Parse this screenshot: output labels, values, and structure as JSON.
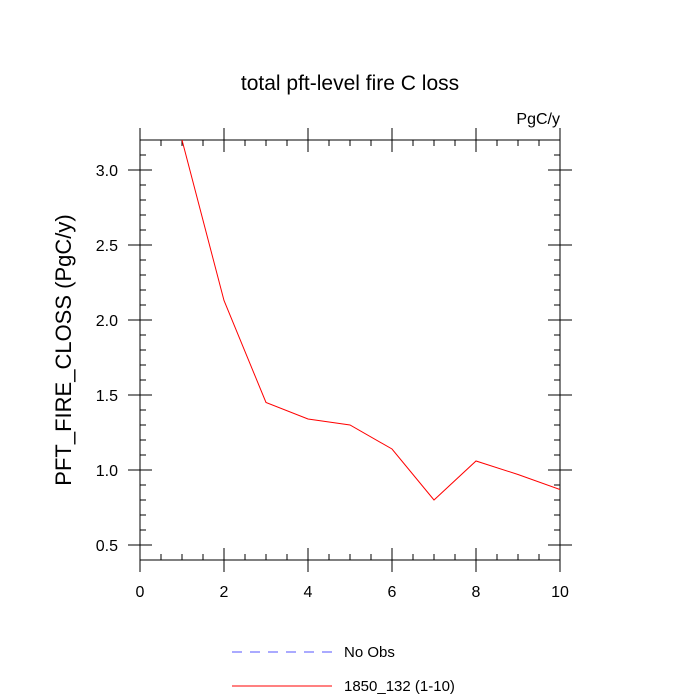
{
  "chart_data": {
    "type": "line",
    "title": "total pft-level fire C loss",
    "units_label": "PgC/y",
    "ylabel": "PFT_FIRE_CLOSS  (PgC/y)",
    "xlabel": "",
    "xlim": [
      0,
      10
    ],
    "ylim": [
      0.4,
      3.2
    ],
    "xticks": [
      0,
      2,
      4,
      6,
      8,
      10
    ],
    "yticks": [
      0.5,
      1.0,
      1.5,
      2.0,
      2.5,
      3.0
    ],
    "ytick_labels": [
      "0.5",
      "1.0",
      "1.5",
      "2.0",
      "2.5",
      "3.0"
    ],
    "grid": false,
    "series": [
      {
        "name": "No Obs",
        "color": "#5555ff",
        "style": "dashed",
        "x": [],
        "y": []
      },
      {
        "name": "1850_132 (1-10)",
        "color": "#ff0000",
        "style": "solid",
        "x": [
          1,
          2,
          3,
          4,
          5,
          6,
          7,
          8,
          9,
          10
        ],
        "y": [
          3.2,
          2.13,
          1.45,
          1.34,
          1.3,
          1.14,
          0.8,
          1.06,
          0.97,
          0.87
        ]
      }
    ],
    "legend_position": "bottom"
  }
}
